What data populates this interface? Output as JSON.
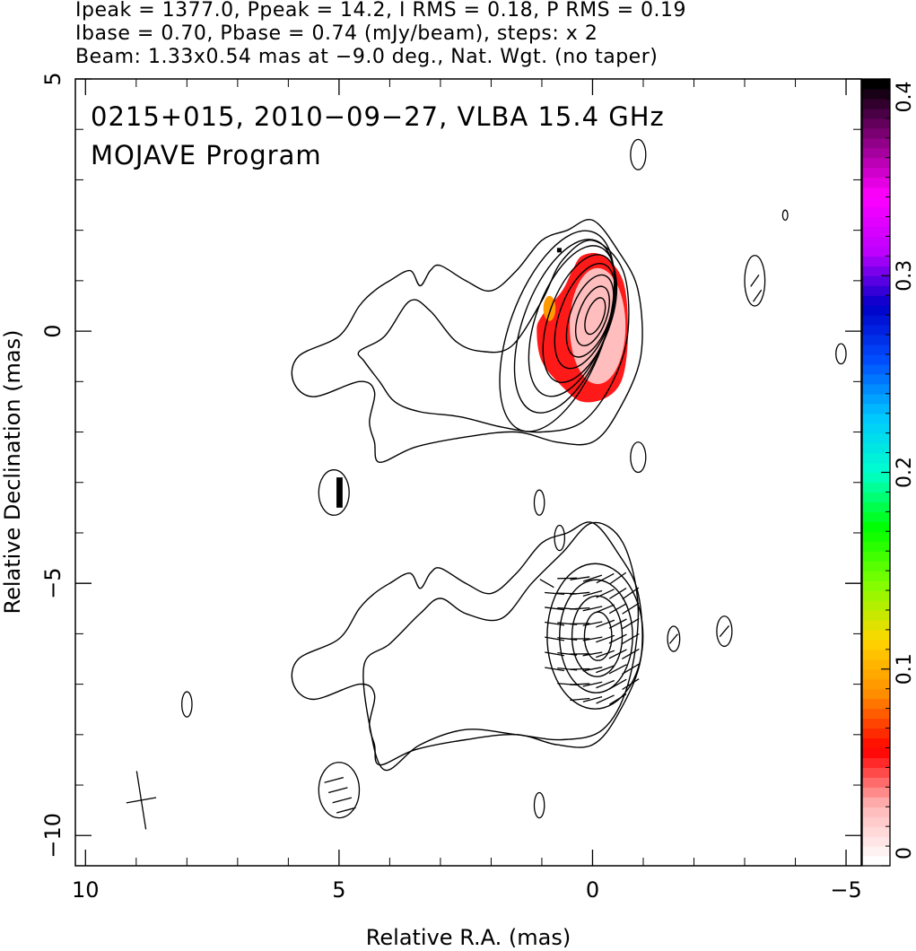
{
  "header": {
    "line1": "Ipeak = 1377.0, Ppeak = 14.2, I RMS = 0.18, P RMS = 0.19",
    "line2": "Ibase = 0.70, Pbase = 0.74 (mJy/beam), steps: x 2",
    "line3": "Beam: 1.33x0.54 mas at −9.0 deg., Nat. Wgt. (no taper)"
  },
  "chart_data": {
    "type": "contour",
    "annotation_line1": "0215+015, 2010−09−27, VLBA 15.4 GHz",
    "annotation_line2": "MOJAVE Program",
    "xlabel": "Relative R.A. (mas)",
    "ylabel": "Relative Declination (mas)",
    "xlim": [
      10.2,
      -5.3
    ],
    "ylim": [
      -10.6,
      5
    ],
    "x_ticks": [
      {
        "value": 10,
        "label": "10"
      },
      {
        "value": 5,
        "label": "5"
      },
      {
        "value": 0,
        "label": "0"
      },
      {
        "value": -5,
        "label": "−5"
      }
    ],
    "y_ticks": [
      {
        "value": 5,
        "label": "5"
      },
      {
        "value": 0,
        "label": "0"
      },
      {
        "value": -5,
        "label": "−5"
      },
      {
        "value": -10,
        "label": "−10"
      }
    ],
    "beam": {
      "major_mas": 1.33,
      "minor_mas": 0.54,
      "pa_deg": -9.0
    },
    "colorbar": {
      "min": 0,
      "max": 0.4,
      "ticks": [
        {
          "value": 0,
          "label": "0"
        },
        {
          "value": 0.1,
          "label": "0.1"
        },
        {
          "value": 0.2,
          "label": "0.2"
        },
        {
          "value": 0.3,
          "label": "0.3"
        },
        {
          "value": 0.4,
          "label": "0.4"
        }
      ],
      "palette": [
        "#ffffff",
        "#ffb6b6",
        "#ff0000",
        "#ff8c00",
        "#ffd700",
        "#80ff00",
        "#00ff00",
        "#00ffcc",
        "#00c8ff",
        "#0050ff",
        "#0000c8",
        "#c000ff",
        "#ff00ff",
        "#8a0080",
        "#000000"
      ]
    },
    "panels": [
      {
        "name": "total_intensity",
        "center": [
          0,
          0
        ],
        "contours": [
          {
            "x": [
              5.8,
              5.0,
              4.6,
              4.3,
              4.0,
              3.6,
              3.4,
              3.2,
              3.0,
              2.5,
              2.0,
              1.5,
              1.0,
              0.5,
              0.0,
              -0.5,
              -0.9,
              -0.95,
              -0.5,
              0.0,
              0.7,
              1.5,
              2.5,
              3.5,
              4.2,
              4.3,
              4.4,
              4.3,
              4.6,
              5.5,
              5.9
            ],
            "y": [
              -0.5,
              -0.1,
              0.5,
              0.8,
              1.0,
              1.2,
              0.9,
              1.2,
              1.3,
              1.0,
              0.8,
              1.2,
              1.8,
              2.0,
              2.2,
              1.6,
              0.8,
              -0.5,
              -1.6,
              -2.2,
              -2.2,
              -2.0,
              -2.1,
              -2.3,
              -2.6,
              -2.2,
              -1.8,
              -1.2,
              -1.0,
              -1.3,
              -1.0
            ]
          },
          {
            "x": [
              4.6,
              4.1,
              3.6,
              3.2,
              2.7,
              2.2,
              1.6,
              1.0,
              0.6,
              0.0,
              -0.6,
              -0.7,
              -0.4,
              0.2,
              1.0,
              1.8,
              2.6,
              3.4,
              3.9,
              4.2,
              4.5
            ],
            "y": [
              -0.4,
              -0.1,
              0.6,
              0.4,
              -0.2,
              -0.4,
              -0.3,
              0.6,
              1.4,
              1.8,
              1.2,
              0.0,
              -1.0,
              -1.8,
              -2.0,
              -1.9,
              -1.7,
              -1.6,
              -1.4,
              -1.0,
              -0.6
            ]
          }
        ],
        "nested_ellipses": {
          "cx": [
            0.75,
            0.6,
            0.45,
            0.3,
            0.2,
            0.1,
            0.05,
            0.0
          ],
          "cy": [
            0.0,
            0.1,
            0.2,
            0.25,
            0.3,
            0.3,
            0.3,
            0.3
          ],
          "rx": [
            1.7,
            1.5,
            1.3,
            1.1,
            0.9,
            0.7,
            0.5,
            0.3
          ],
          "ry": [
            2.2,
            1.9,
            1.65,
            1.4,
            1.15,
            0.9,
            0.65,
            0.4
          ]
        },
        "pol_patch": {
          "x": [
            1.0,
            0.6,
            0.4,
            0.2,
            -0.2,
            -0.6,
            -0.7,
            -0.6,
            -0.3,
            0.2,
            0.6,
            1.0,
            1.1
          ],
          "y": [
            0.3,
            0.8,
            1.2,
            1.5,
            1.5,
            1.0,
            0.0,
            -0.9,
            -1.3,
            -1.4,
            -1.1,
            -0.6,
            0.0
          ]
        }
      },
      {
        "name": "linear_polarization",
        "center": [
          0,
          -6.0
        ]
      }
    ],
    "isolated_blobs": [
      {
        "x": -0.9,
        "y": 3.5,
        "rx": 0.15,
        "ry": 0.3
      },
      {
        "x": -3.2,
        "y": 1.0,
        "rx": 0.2,
        "ry": 0.5
      },
      {
        "x": -3.8,
        "y": 2.3,
        "rx": 0.05,
        "ry": 0.1
      },
      {
        "x": -4.9,
        "y": -0.45,
        "rx": 0.1,
        "ry": 0.2
      },
      {
        "x": -0.9,
        "y": -2.5,
        "rx": 0.15,
        "ry": 0.3
      },
      {
        "x": 5.1,
        "y": -3.2,
        "rx": 0.3,
        "ry": 0.45
      },
      {
        "x": 1.05,
        "y": -3.4,
        "rx": 0.1,
        "ry": 0.25
      },
      {
        "x": 0.65,
        "y": -4.1,
        "rx": 0.1,
        "ry": 0.25
      },
      {
        "x": -1.6,
        "y": -6.1,
        "rx": 0.12,
        "ry": 0.25
      },
      {
        "x": -2.6,
        "y": -5.95,
        "rx": 0.15,
        "ry": 0.3
      },
      {
        "x": 8.0,
        "y": -7.4,
        "rx": 0.1,
        "ry": 0.25
      },
      {
        "x": 1.05,
        "y": -9.4,
        "rx": 0.1,
        "ry": 0.25
      },
      {
        "x": 5.0,
        "y": -9.1,
        "rx": 0.4,
        "ry": 0.55
      }
    ],
    "pol_vector_scale_bar": {
      "x": 8.9,
      "y": -9.3,
      "angle_deg": -9
    }
  }
}
